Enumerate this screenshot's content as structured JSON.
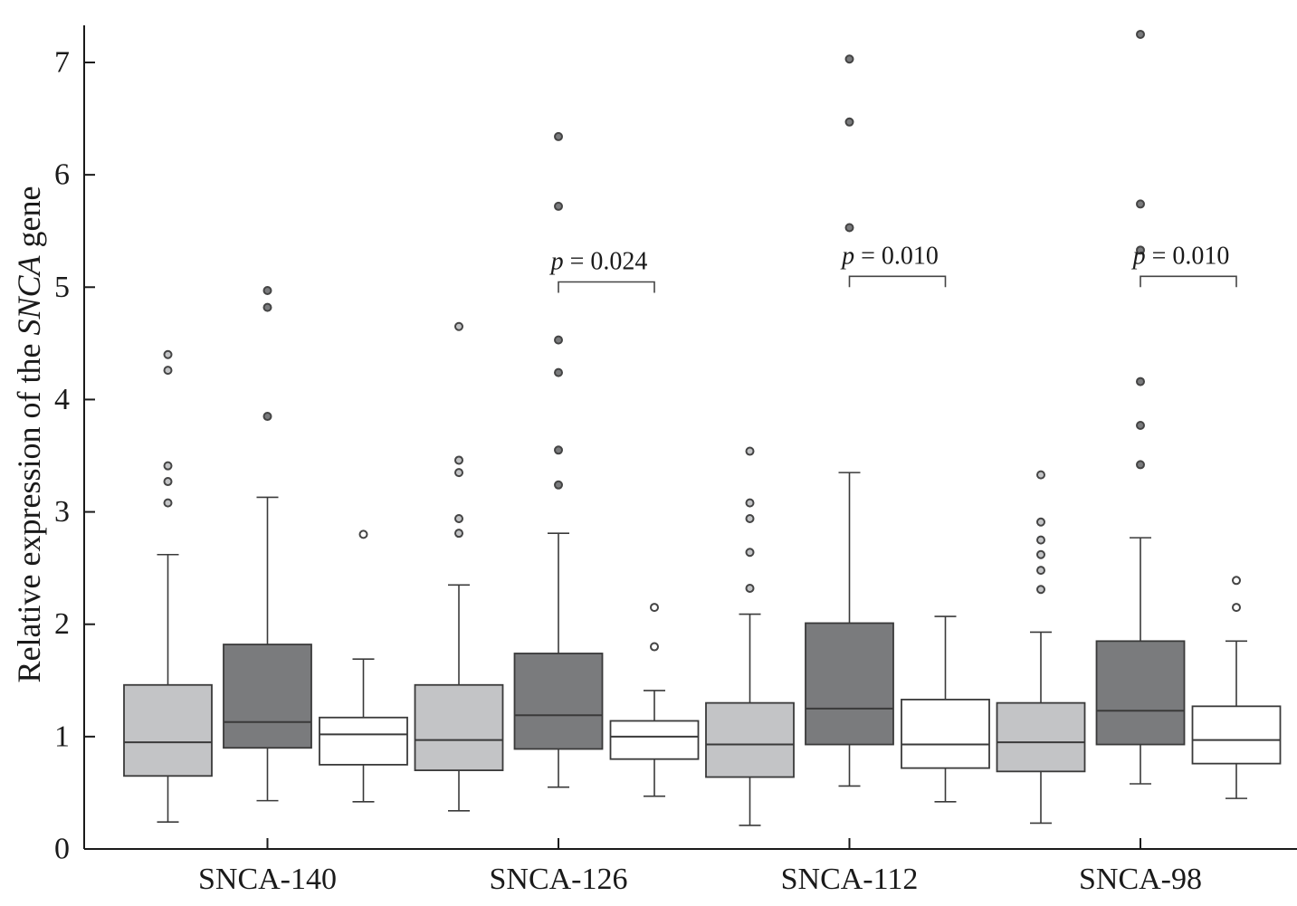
{
  "chart_data": {
    "type": "box",
    "title": "",
    "ylabel_prefix": "Relative expression of the ",
    "ylabel_gene": "SNCA",
    "ylabel_suffix": " gene",
    "ylim": [
      0,
      7.35
    ],
    "yticks": [
      0,
      1,
      2,
      3,
      4,
      5,
      6,
      7
    ],
    "grid": false,
    "legend": "none",
    "group_colors": [
      "#c3c4c6",
      "#7a7b7d",
      "#ffffff"
    ],
    "categories": [
      "SNCA-140",
      "SNCA-126",
      "SNCA-112",
      "SNCA-98"
    ],
    "groups": [
      {
        "category": "SNCA-140",
        "boxes": [
          {
            "min": 0.24,
            "q1": 0.65,
            "median": 0.95,
            "q3": 1.46,
            "max": 2.62,
            "outliers": [
              3.08,
              3.27,
              3.41,
              4.26,
              4.4
            ]
          },
          {
            "min": 0.43,
            "q1": 0.9,
            "median": 1.13,
            "q3": 1.82,
            "max": 3.13,
            "outliers": [
              3.85,
              4.82,
              4.97
            ]
          },
          {
            "min": 0.42,
            "q1": 0.75,
            "median": 1.02,
            "q3": 1.17,
            "max": 1.69,
            "outliers": [
              2.8
            ]
          }
        ]
      },
      {
        "category": "SNCA-126",
        "boxes": [
          {
            "min": 0.34,
            "q1": 0.7,
            "median": 0.97,
            "q3": 1.46,
            "max": 2.35,
            "outliers": [
              2.81,
              2.94,
              3.35,
              3.46,
              4.65
            ]
          },
          {
            "min": 0.55,
            "q1": 0.89,
            "median": 1.19,
            "q3": 1.74,
            "max": 2.81,
            "outliers": [
              3.24,
              3.55,
              4.24,
              4.53,
              5.72,
              6.34
            ]
          },
          {
            "min": 0.47,
            "q1": 0.8,
            "median": 1.0,
            "q3": 1.14,
            "max": 1.41,
            "outliers": [
              1.8,
              2.15
            ]
          }
        ]
      },
      {
        "category": "SNCA-112",
        "boxes": [
          {
            "min": 0.21,
            "q1": 0.64,
            "median": 0.93,
            "q3": 1.3,
            "max": 2.09,
            "outliers": [
              2.32,
              2.64,
              2.94,
              3.08,
              3.54
            ]
          },
          {
            "min": 0.56,
            "q1": 0.93,
            "median": 1.25,
            "q3": 2.01,
            "max": 3.35,
            "outliers": [
              5.53,
              6.47,
              7.03
            ]
          },
          {
            "min": 0.42,
            "q1": 0.72,
            "median": 0.93,
            "q3": 1.33,
            "max": 2.07,
            "outliers": []
          }
        ]
      },
      {
        "category": "SNCA-98",
        "boxes": [
          {
            "min": 0.23,
            "q1": 0.69,
            "median": 0.95,
            "q3": 1.3,
            "max": 1.93,
            "outliers": [
              2.31,
              2.48,
              2.62,
              2.75,
              2.91,
              3.33
            ]
          },
          {
            "min": 0.58,
            "q1": 0.93,
            "median": 1.23,
            "q3": 1.85,
            "max": 2.77,
            "outliers": [
              3.42,
              3.77,
              4.16,
              5.33,
              5.74,
              7.25
            ]
          },
          {
            "min": 0.45,
            "q1": 0.76,
            "median": 0.97,
            "q3": 1.27,
            "max": 1.85,
            "outliers": [
              2.15,
              2.39
            ]
          }
        ]
      }
    ],
    "annotations": [
      {
        "category": "SNCA-126",
        "from_box": 2,
        "to_box": 3,
        "y": 4.95,
        "text": "p = 0.024"
      },
      {
        "category": "SNCA-112",
        "from_box": 2,
        "to_box": 3,
        "y": 5.0,
        "text": "p = 0.010"
      },
      {
        "category": "SNCA-98",
        "from_box": 2,
        "to_box": 3,
        "y": 5.0,
        "text": "p = 0.010"
      }
    ]
  }
}
